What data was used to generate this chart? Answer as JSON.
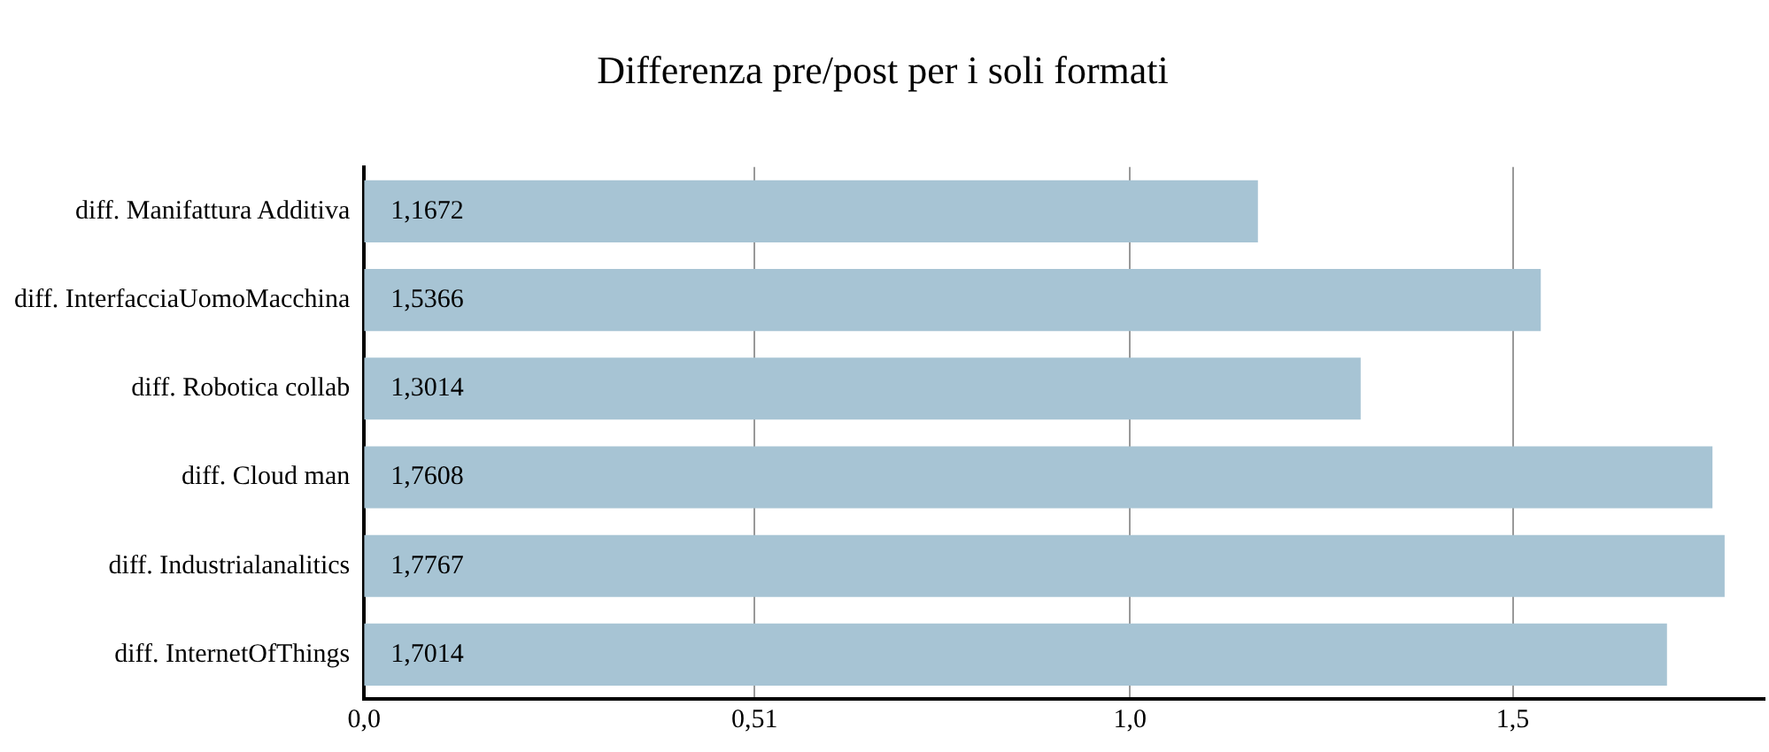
{
  "chart_data": {
    "type": "bar",
    "orientation": "horizontal",
    "title": "Differenza pre/post per i soli formati",
    "categories": [
      "diff. Manifattura Additiva",
      "diff. InterfacciaUomoMacchina",
      "diff. Robotica collab",
      "diff. Cloud man",
      "diff. Industrialanalitics",
      "diff. InternetOfThings"
    ],
    "values": [
      1.1672,
      1.5366,
      1.3014,
      1.7608,
      1.7767,
      1.7014
    ],
    "value_labels": [
      "1,1672",
      "1,5366",
      "1,3014",
      "1,7608",
      "1,7767",
      "1,7014"
    ],
    "color": "#a7c4d4",
    "xlim": [
      0,
      1.83
    ],
    "xticks": [
      {
        "value": 0,
        "label": "0,0"
      },
      {
        "value": 0.51,
        "label": "0,51"
      },
      {
        "value": 1,
        "label": "1,0"
      },
      {
        "value": 1.5,
        "label": "1,5"
      }
    ],
    "grid": "x",
    "legend": false
  }
}
